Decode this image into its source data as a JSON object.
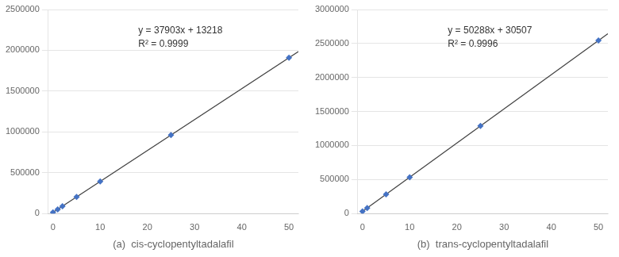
{
  "chart_data": [
    {
      "type": "scatter",
      "xlabel": "(a)  cis-cyclopentyltadalafil",
      "annotations": [
        "y = 37903x + 13218",
        "R² = 0.9999"
      ],
      "xlim": [
        -1,
        52
      ],
      "xticks": [
        0,
        10,
        20,
        30,
        40,
        50
      ],
      "ylim": [
        0,
        2500000
      ],
      "yticks": [
        0,
        500000,
        1000000,
        1500000,
        2000000,
        2500000
      ],
      "grid": "y",
      "series": [
        {
          "type": "scatter",
          "color": "#4472c4",
          "marker": "diamond",
          "x": [
            0,
            1,
            2,
            5,
            10,
            25,
            50
          ],
          "values": [
            13218,
            50921,
            88826,
            202733,
            392248,
            960993,
            1908368
          ]
        },
        {
          "type": "line",
          "color": "#404040",
          "line_style": "solid",
          "x": [
            0,
            52
          ],
          "values": [
            13218,
            1984174
          ]
        }
      ]
    },
    {
      "type": "scatter",
      "xlabel": "(b)  trans-cyclopentyltadalafil",
      "annotations": [
        "y = 50288x + 30507",
        "R² = 0.9996"
      ],
      "xlim": [
        -1,
        52
      ],
      "xticks": [
        0,
        10,
        20,
        30,
        40,
        50
      ],
      "ylim": [
        0,
        3000000
      ],
      "yticks": [
        0,
        500000,
        1000000,
        1500000,
        2000000,
        2500000,
        3000000
      ],
      "grid": "y",
      "series": [
        {
          "type": "scatter",
          "color": "#4472c4",
          "marker": "diamond",
          "x": [
            0,
            1,
            5,
            10,
            25,
            50
          ],
          "values": [
            30507,
            80795,
            281947,
            533387,
            1287727,
            2544907
          ]
        },
        {
          "type": "line",
          "color": "#404040",
          "line_style": "solid",
          "x": [
            0,
            52
          ],
          "values": [
            30507,
            2645483
          ]
        }
      ]
    }
  ]
}
